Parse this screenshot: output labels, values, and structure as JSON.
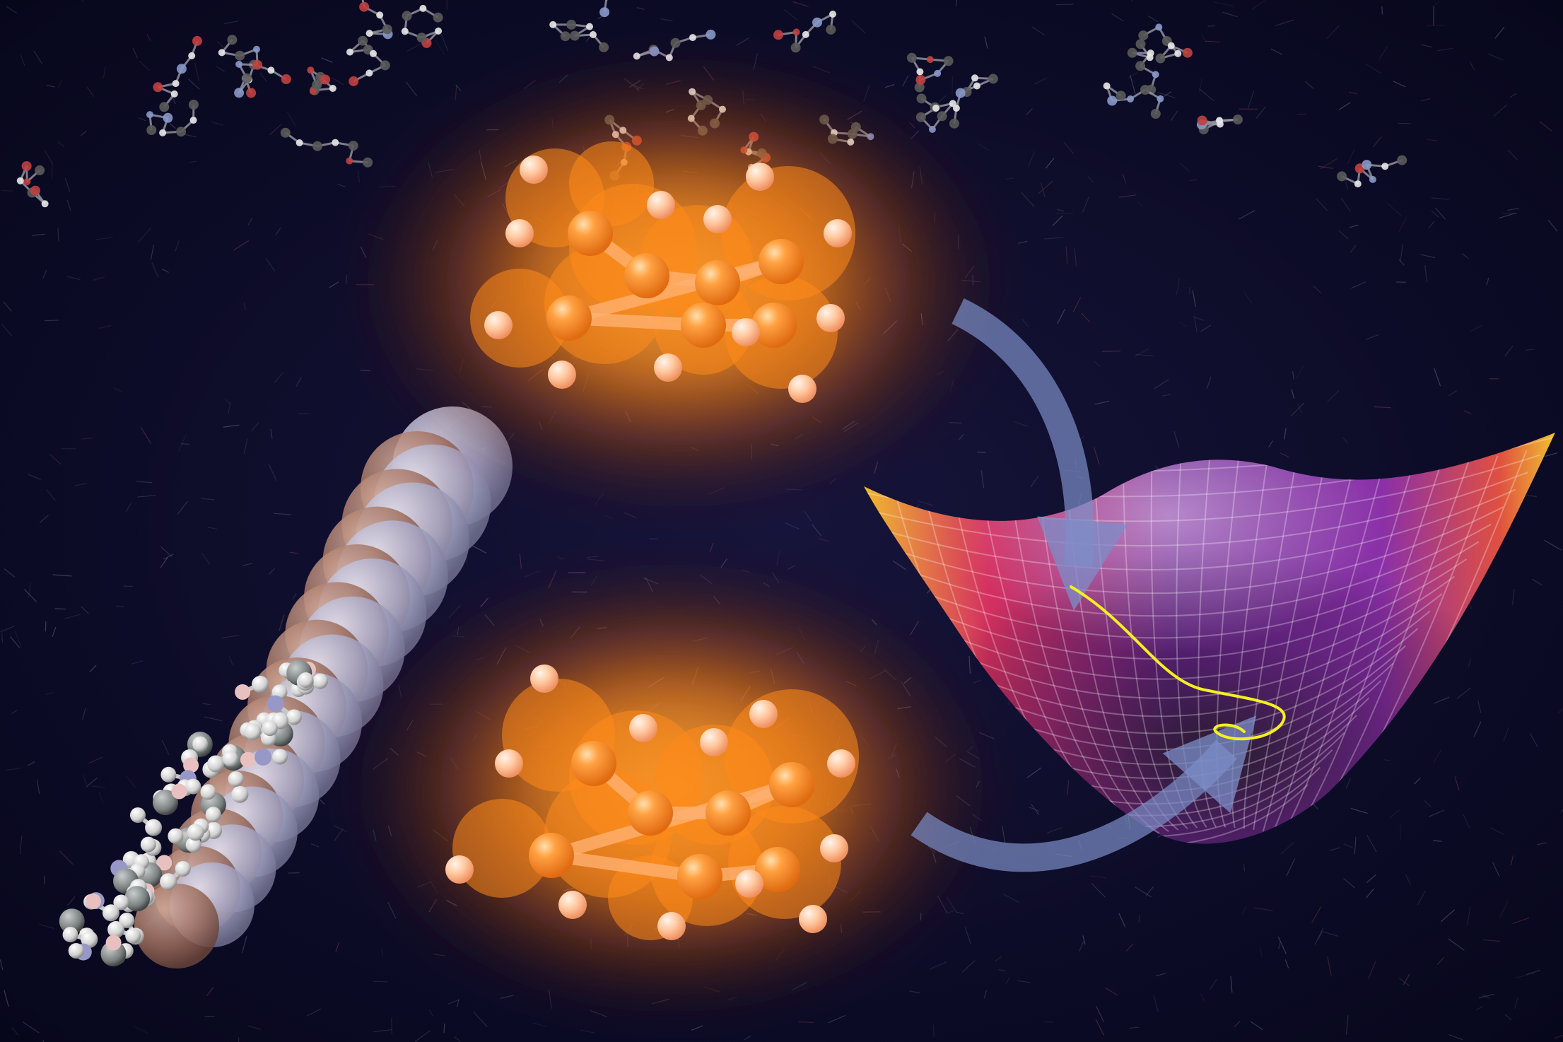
{
  "scene": {
    "kind": "illustration",
    "has_visible_text": false,
    "colors": {
      "background": "#0a0a1e",
      "glow_orange": "#ff9a2a",
      "molecule_orange": "#ff8c1a",
      "arrow_blue": "#7c8ec8",
      "surface_purple": "#7a2aa0",
      "surface_magenta": "#d0305a",
      "surface_yellow": "#f0c030",
      "trajectory_yellow": "#f4f020",
      "chain_brown": "#a07868",
      "chain_lavender": "#a8a8c8"
    },
    "elements": [
      "background-molecular-network",
      "glowing-molecule-top",
      "glowing-molecule-bottom",
      "polymer-chain-left",
      "potential-energy-surface",
      "curved-arrow-top",
      "curved-arrow-bottom",
      "trajectory-path"
    ]
  }
}
